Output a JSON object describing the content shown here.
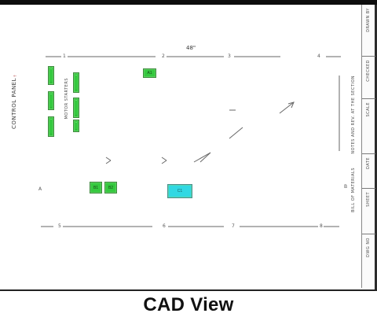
{
  "caption": "CAD View",
  "dimension_top": "48\"",
  "left_vertical_title": "CONTROL PANEL",
  "mid_left_vertical": "MOTOR STARTERS",
  "mid_vertical_1": "NOTES AND REV. AT THE SECTION",
  "mid_vertical_2": "BILL OF MATERIALS",
  "title_block_rows": [
    "DRAWN BY",
    "CHECKED",
    "SCALE",
    "DATE",
    "SHEET",
    "DWG NO"
  ],
  "labels": {
    "top_left_tick": "1",
    "top_mid_tick": "2",
    "top_right_tick": "3",
    "top_far_tick": "4",
    "bottom_left_tick": "5",
    "bottom_mid_tick": "6",
    "bottom_right_tick": "7",
    "bottom_far_tick": "8",
    "left_marker": "A",
    "right_marker": "B"
  },
  "components": {
    "top_green": "A1",
    "mid_green_left": "B1",
    "mid_green_right": "B2",
    "cyan_block": "C1"
  }
}
